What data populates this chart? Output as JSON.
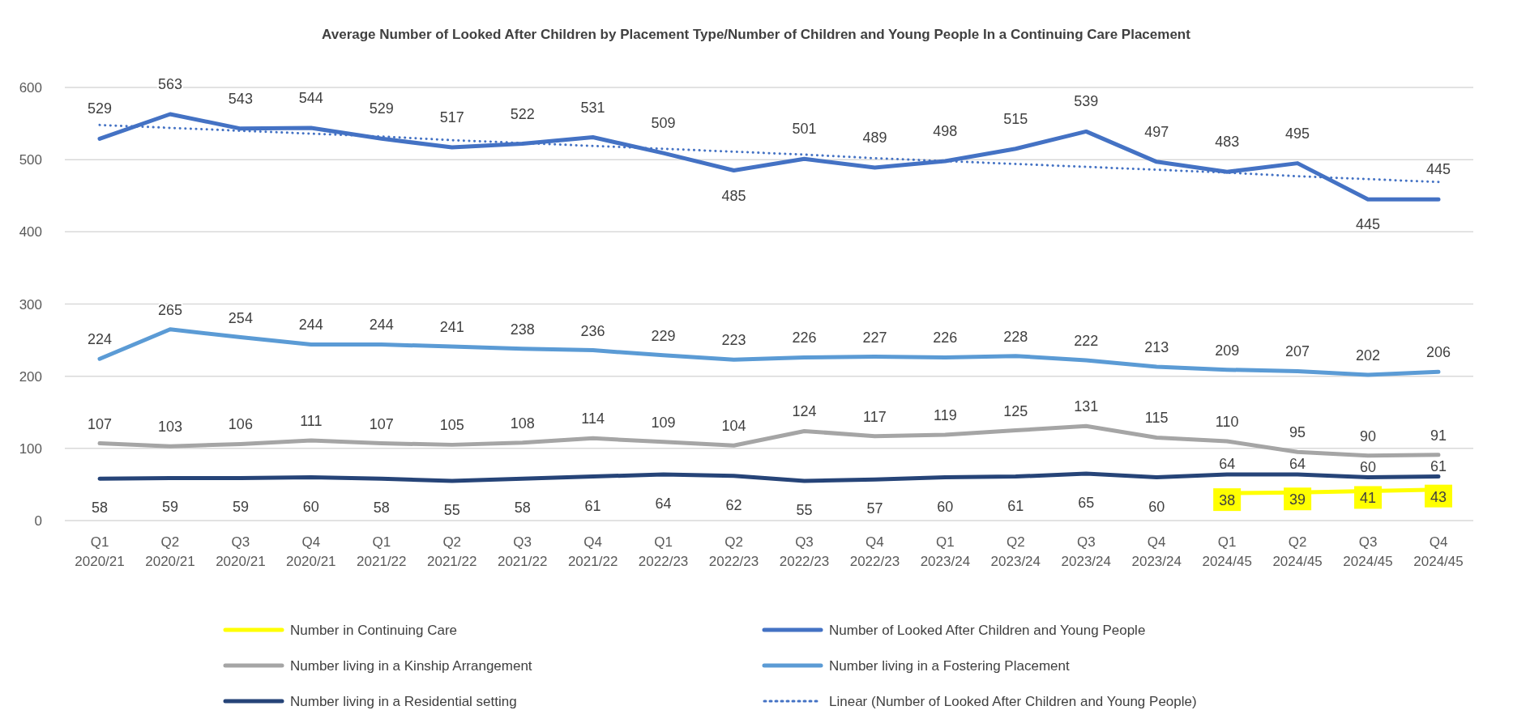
{
  "chart_data": {
    "type": "line",
    "title": "Average Number of Looked After Children by Placement Type/Number of Children and Young People In a Continuing Care Placement",
    "categories": [
      "Q1\n2020/21",
      "Q2\n2020/21",
      "Q3\n2020/21",
      "Q4\n2020/21",
      "Q1\n2021/22",
      "Q2\n2021/22",
      "Q3\n2021/22",
      "Q4\n2021/22",
      "Q1\n2022/23",
      "Q2\n2022/23",
      "Q3\n2022/23",
      "Q4\n2022/23",
      "Q1\n2023/24",
      "Q2\n2023/24",
      "Q3\n2023/24",
      "Q4\n2023/24",
      "Q1\n2024/45",
      "Q2\n2024/45",
      "Q3\n2024/45",
      "Q4\n2024/45"
    ],
    "ylim": [
      0,
      600
    ],
    "yticks": [
      0,
      100,
      200,
      300,
      400,
      500,
      600
    ],
    "grid": "y",
    "legend": "bottom",
    "marker": "none",
    "series": [
      {
        "name": "Number in Continuing Care",
        "color": "#ffff00",
        "values": [
          null,
          null,
          null,
          null,
          null,
          null,
          null,
          null,
          null,
          null,
          null,
          null,
          null,
          null,
          null,
          null,
          38,
          39,
          41,
          43
        ],
        "value_labels": [
          null,
          null,
          null,
          null,
          null,
          null,
          null,
          null,
          null,
          null,
          null,
          null,
          null,
          null,
          null,
          null,
          "38",
          "39",
          "41",
          "43"
        ]
      },
      {
        "name": "Number of Looked After Children and Young People",
        "color": "#4472c4",
        "values": [
          529,
          563,
          543,
          544,
          529,
          517,
          522,
          531,
          509,
          485,
          501,
          489,
          498,
          515,
          539,
          497,
          483,
          495,
          445,
          445
        ],
        "value_labels": [
          "529",
          "563",
          "543",
          "544",
          "529",
          "517",
          "522",
          "531",
          "509",
          "485",
          "501",
          "489",
          "498",
          "515",
          "539",
          "497",
          "483",
          "495",
          "445",
          "445"
        ]
      },
      {
        "name": "Number living in a Kinship Arrangement",
        "color": "#a5a5a5",
        "values": [
          107,
          103,
          106,
          111,
          107,
          105,
          108,
          114,
          109,
          104,
          124,
          117,
          119,
          125,
          131,
          115,
          110,
          95,
          90,
          91
        ],
        "value_labels": [
          "107",
          "103",
          "106",
          "111",
          "107",
          "105",
          "108",
          "114",
          "109",
          "104",
          "124",
          "117",
          "119",
          "125",
          "131",
          "115",
          "110",
          "95",
          "90",
          "91"
        ]
      },
      {
        "name": "Number living in a Fostering Placement",
        "color": "#5b9bd5",
        "values": [
          224,
          265,
          254,
          244,
          244,
          241,
          238,
          236,
          229,
          223,
          226,
          227,
          226,
          228,
          222,
          213,
          209,
          207,
          202,
          206
        ],
        "value_labels": [
          "224",
          "265",
          "254",
          "244",
          "244",
          "241",
          "238",
          "236",
          "229",
          "223",
          "226",
          "227",
          "226",
          "228",
          "222",
          "213",
          "209",
          "207",
          "202",
          "206"
        ]
      },
      {
        "name": "Number living in a Residential setting",
        "color": "#264478",
        "values": [
          58,
          59,
          59,
          60,
          58,
          55,
          58,
          61,
          64,
          62,
          55,
          57,
          60,
          61,
          65,
          60,
          64,
          64,
          60,
          61
        ],
        "value_labels": [
          "58",
          "59",
          "59",
          "60",
          "58",
          "55",
          "58",
          "61",
          "64",
          "62",
          "55",
          "57",
          "60",
          "61",
          "65",
          "60",
          "64",
          "64",
          "60",
          "61"
        ]
      },
      {
        "name": "Linear (Number of Looked After Children and Young People)",
        "color": "#4472c4",
        "line_style": "dotted",
        "values": [
          548,
          544,
          540,
          536,
          532,
          527,
          523,
          519,
          515,
          511,
          507,
          502,
          498,
          494,
          490,
          486,
          482,
          477,
          473,
          469
        ]
      }
    ]
  }
}
